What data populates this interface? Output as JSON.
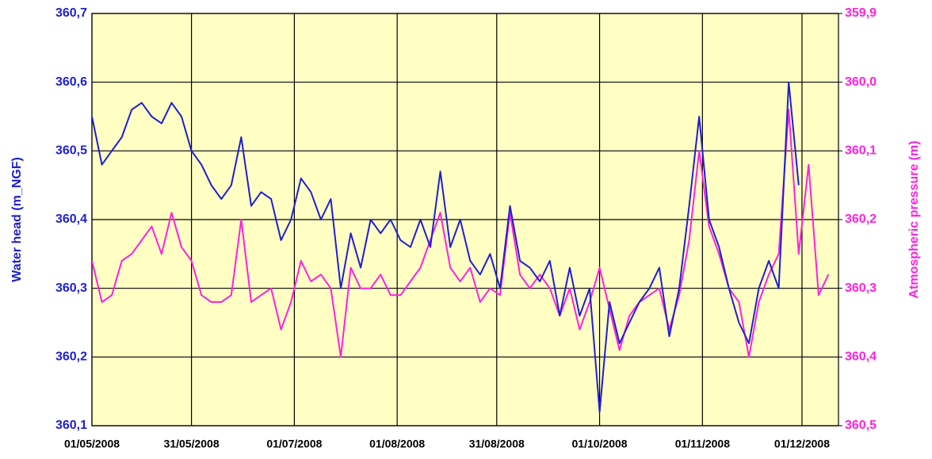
{
  "chart_data": {
    "type": "line",
    "y_label": "Water head (m_NGF)",
    "y2_label": "Atmospheric pressure (m)",
    "x": [
      "01/05/2008",
      "04/05/2008",
      "07/05/2008",
      "10/05/2008",
      "13/05/2008",
      "16/05/2008",
      "19/05/2008",
      "22/05/2008",
      "25/05/2008",
      "28/05/2008",
      "31/05/2008",
      "03/06/2008",
      "06/06/2008",
      "09/06/2008",
      "12/06/2008",
      "15/06/2008",
      "18/06/2008",
      "21/06/2008",
      "24/06/2008",
      "27/06/2008",
      "30/06/2008",
      "03/07/2008",
      "06/07/2008",
      "09/07/2008",
      "12/07/2008",
      "15/07/2008",
      "18/07/2008",
      "21/07/2008",
      "24/07/2008",
      "27/07/2008",
      "30/07/2008",
      "02/08/2008",
      "05/08/2008",
      "08/08/2008",
      "11/08/2008",
      "14/08/2008",
      "17/08/2008",
      "20/08/2008",
      "23/08/2008",
      "26/08/2008",
      "29/08/2008",
      "01/09/2008",
      "04/09/2008",
      "07/09/2008",
      "10/09/2008",
      "13/09/2008",
      "16/09/2008",
      "19/09/2008",
      "22/09/2008",
      "25/09/2008",
      "28/09/2008",
      "01/10/2008",
      "04/10/2008",
      "07/10/2008",
      "10/10/2008",
      "13/10/2008",
      "16/10/2008",
      "19/10/2008",
      "22/10/2008",
      "25/10/2008",
      "28/10/2008",
      "31/10/2008",
      "03/11/2008",
      "06/11/2008",
      "09/11/2008",
      "12/11/2008",
      "15/11/2008",
      "18/11/2008",
      "21/11/2008",
      "24/11/2008",
      "27/11/2008",
      "30/11/2008",
      "03/12/2008",
      "06/12/2008",
      "09/12/2008"
    ],
    "series": [
      {
        "name": "Water head",
        "color": "#1f1fd0",
        "axis": "y",
        "values": [
          360.55,
          360.48,
          360.5,
          360.52,
          360.56,
          360.57,
          360.55,
          360.54,
          360.57,
          360.55,
          360.5,
          360.48,
          360.45,
          360.43,
          360.45,
          360.52,
          360.42,
          360.44,
          360.43,
          360.37,
          360.4,
          360.46,
          360.44,
          360.4,
          360.43,
          360.3,
          360.38,
          360.33,
          360.4,
          360.38,
          360.4,
          360.37,
          360.36,
          360.4,
          360.36,
          360.47,
          360.36,
          360.4,
          360.34,
          360.32,
          360.35,
          360.3,
          360.42,
          360.34,
          360.33,
          360.31,
          360.34,
          360.26,
          360.33,
          360.26,
          360.3,
          360.12,
          360.28,
          360.22,
          360.25,
          360.28,
          360.3,
          360.33,
          360.23,
          360.3,
          360.42,
          360.55,
          360.4,
          360.36,
          360.3,
          360.25,
          360.22,
          360.3,
          360.34,
          360.3,
          360.6,
          360.45,
          null,
          null,
          null
        ]
      },
      {
        "name": "Atmospheric pressure",
        "color": "#ff22dd",
        "axis": "y2",
        "values": [
          360.26,
          360.32,
          360.31,
          360.26,
          360.25,
          360.23,
          360.21,
          360.25,
          360.19,
          360.24,
          360.26,
          360.31,
          360.32,
          360.32,
          360.31,
          360.2,
          360.32,
          360.31,
          360.3,
          360.36,
          360.32,
          360.26,
          360.29,
          360.28,
          360.3,
          360.4,
          360.27,
          360.3,
          360.3,
          360.28,
          360.31,
          360.31,
          360.29,
          360.27,
          360.23,
          360.19,
          360.27,
          360.29,
          360.27,
          360.32,
          360.3,
          360.31,
          360.19,
          360.28,
          360.3,
          360.28,
          360.3,
          360.34,
          360.3,
          360.36,
          360.32,
          360.27,
          360.33,
          360.39,
          360.34,
          360.32,
          360.31,
          360.3,
          360.36,
          360.31,
          360.23,
          360.1,
          360.21,
          360.25,
          360.3,
          360.32,
          360.4,
          360.32,
          360.28,
          360.25,
          360.04,
          360.25,
          360.12,
          360.31,
          360.28
        ]
      }
    ],
    "xlim": [
      "01/05/2008",
      "12/12/2008"
    ],
    "xticks": [
      "01/05/2008",
      "31/05/2008",
      "01/07/2008",
      "01/08/2008",
      "31/08/2008",
      "01/10/2008",
      "01/11/2008",
      "01/12/2008"
    ],
    "ylim": [
      360.1,
      360.7
    ],
    "yticks": [
      {
        "value": 360.1,
        "label": "360,1"
      },
      {
        "value": 360.2,
        "label": "360,2"
      },
      {
        "value": 360.3,
        "label": "360,3"
      },
      {
        "value": 360.4,
        "label": "360,4"
      },
      {
        "value": 360.5,
        "label": "360,5"
      },
      {
        "value": 360.6,
        "label": "360,6"
      },
      {
        "value": 360.7,
        "label": "360,7"
      }
    ],
    "y2lim": [
      360.5,
      359.9
    ],
    "y2ticks": [
      {
        "value": 360.5,
        "label": "360,5"
      },
      {
        "value": 360.4,
        "label": "360,4"
      },
      {
        "value": 360.3,
        "label": "360,3"
      },
      {
        "value": 360.2,
        "label": "360,2"
      },
      {
        "value": 360.1,
        "label": "360,1"
      },
      {
        "value": 360.0,
        "label": "360,0"
      },
      {
        "value": 359.9,
        "label": "359,9"
      }
    ],
    "grid": true,
    "plot_background": "#ffffc4",
    "y_color": "#1f1fd0",
    "y2_color": "#ff22dd"
  }
}
